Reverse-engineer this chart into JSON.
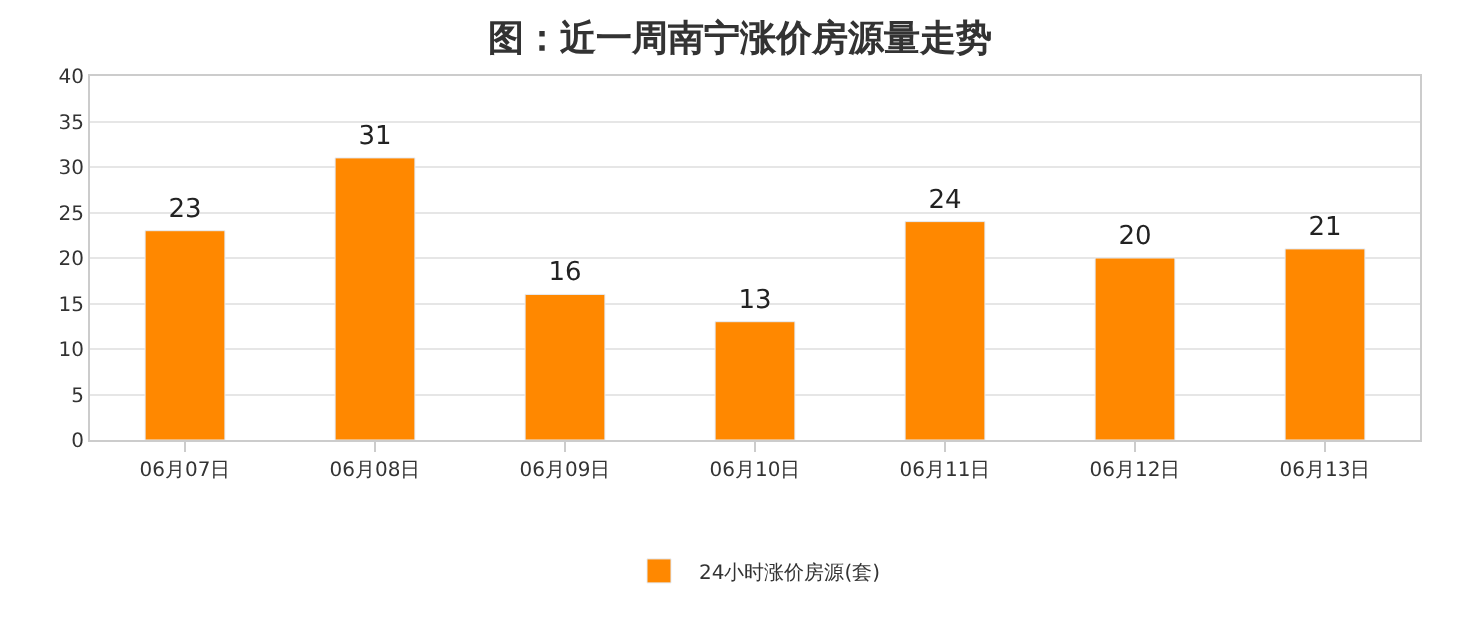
{
  "chart_data": {
    "type": "bar",
    "title": "图：近一周南宁涨价房源量走势",
    "categories": [
      "06月07日",
      "06月08日",
      "06月09日",
      "06月10日",
      "06月11日",
      "06月12日",
      "06月13日"
    ],
    "series": [
      {
        "name": "24小时涨价房源(套)",
        "color": "#ff8800",
        "values": [
          23,
          31,
          16,
          13,
          24,
          20,
          21
        ]
      }
    ],
    "ylim": [
      0,
      40
    ],
    "yticks": [
      0,
      5,
      10,
      15,
      20,
      25,
      30,
      35,
      40
    ],
    "grid": "y",
    "legend": "bottom",
    "data_labels": true
  }
}
